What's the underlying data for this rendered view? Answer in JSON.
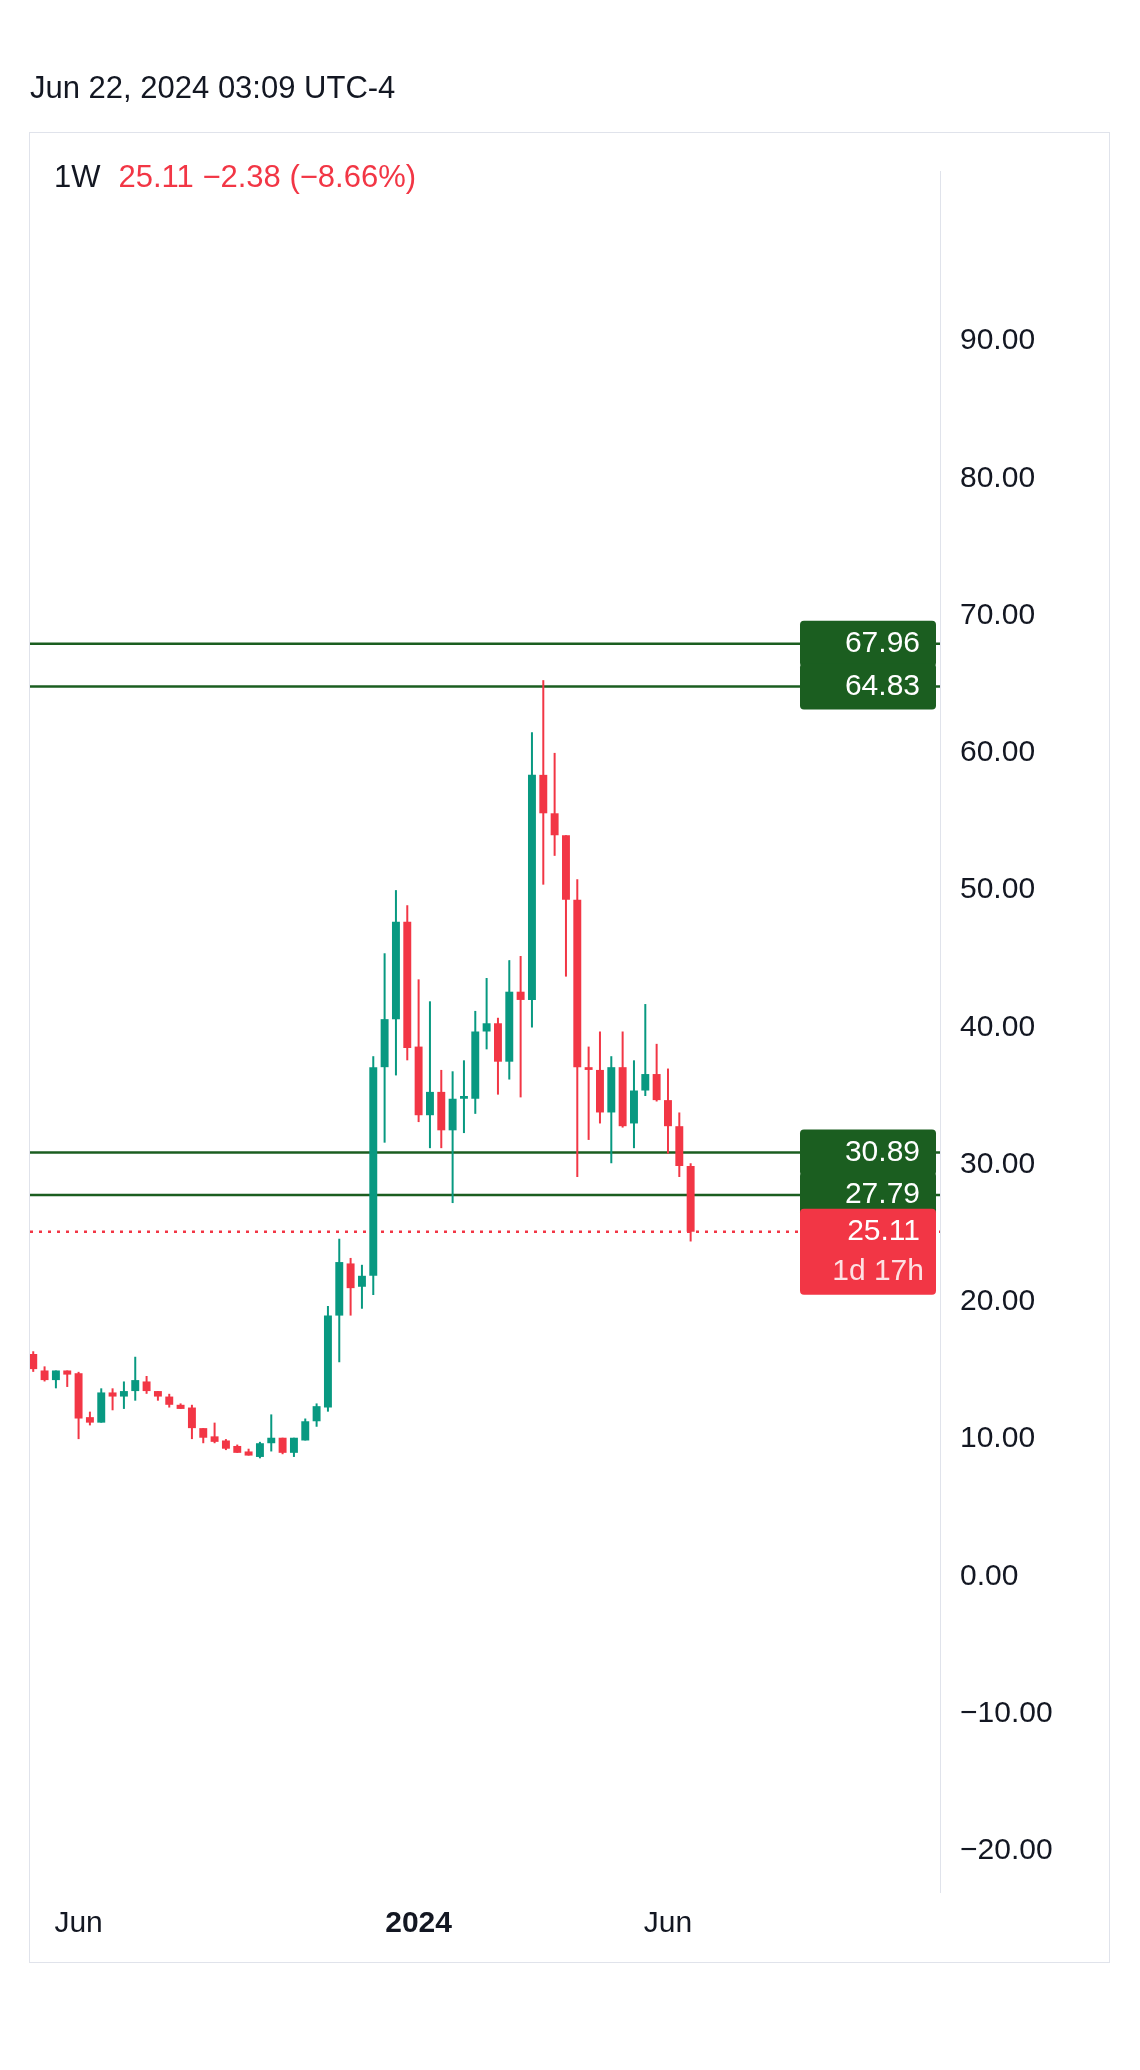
{
  "chart_data": {
    "type": "candlestick",
    "title": "1W",
    "subtitle": "Jun 22, 2024 03:09 UTC-4",
    "annotations": [
      "25.11  −2.38 (−8.66%)",
      {
        "text": "1d 17h",
        "x": "2024-11-18",
        "y": 25.11
      }
    ],
    "x": [
      "2023-05-08",
      "2023-05-15",
      "2023-05-22",
      "2023-05-29",
      "2023-06-05",
      "2023-06-12",
      "2023-06-19",
      "2023-06-26",
      "2023-07-03",
      "2023-07-10",
      "2023-07-17",
      "2023-07-24",
      "2023-07-31",
      "2023-08-07",
      "2023-08-14",
      "2023-08-21",
      "2023-08-28",
      "2023-09-04",
      "2023-09-11",
      "2023-09-18",
      "2023-09-25",
      "2023-10-02",
      "2023-10-09",
      "2023-10-16",
      "2023-10-23",
      "2023-10-30",
      "2023-11-06",
      "2023-11-13",
      "2023-11-20",
      "2023-11-27",
      "2023-12-04",
      "2023-12-11",
      "2023-12-18",
      "2023-12-25",
      "2024-01-01",
      "2024-01-08",
      "2024-01-15",
      "2024-01-22",
      "2024-01-29",
      "2024-02-05",
      "2024-02-12",
      "2024-02-19",
      "2024-02-26",
      "2024-03-04",
      "2024-03-11",
      "2024-03-18",
      "2024-03-25",
      "2024-04-01",
      "2024-04-08",
      "2024-04-15",
      "2024-04-22",
      "2024-04-29",
      "2024-05-06",
      "2024-05-13",
      "2024-05-20",
      "2024-05-27",
      "2024-06-03",
      "2024-06-10",
      "2024-06-17"
    ],
    "ohlc": [
      [
        16.2,
        16.4,
        14.9,
        15.1
      ],
      [
        15.0,
        15.3,
        14.2,
        14.3
      ],
      [
        14.3,
        15.0,
        13.7,
        15.0
      ],
      [
        15.0,
        15.0,
        13.8,
        14.7
      ],
      [
        14.8,
        14.9,
        10.0,
        11.5
      ],
      [
        11.6,
        12.0,
        11.0,
        11.2
      ],
      [
        11.2,
        13.7,
        11.2,
        13.4
      ],
      [
        13.4,
        13.7,
        12.1,
        13.1
      ],
      [
        13.1,
        14.2,
        12.2,
        13.5
      ],
      [
        13.5,
        16.0,
        12.8,
        14.3
      ],
      [
        14.2,
        14.6,
        13.3,
        13.5
      ],
      [
        13.5,
        13.5,
        12.8,
        13.1
      ],
      [
        13.1,
        13.3,
        12.3,
        12.5
      ],
      [
        12.5,
        12.6,
        12.2,
        12.2
      ],
      [
        12.3,
        12.5,
        10.0,
        10.8
      ],
      [
        10.8,
        10.8,
        9.7,
        10.1
      ],
      [
        10.2,
        11.2,
        9.7,
        9.8
      ],
      [
        9.9,
        10.0,
        9.2,
        9.3
      ],
      [
        9.5,
        9.6,
        9.0,
        9.0
      ],
      [
        9.1,
        9.3,
        8.8,
        8.8
      ],
      [
        8.7,
        9.8,
        8.6,
        9.7
      ],
      [
        9.7,
        11.8,
        9.1,
        10.1
      ],
      [
        10.1,
        10.1,
        8.9,
        9.0
      ],
      [
        9.0,
        10.1,
        8.7,
        10.1
      ],
      [
        9.9,
        11.5,
        9.9,
        11.3
      ],
      [
        11.3,
        12.6,
        10.9,
        12.4
      ],
      [
        12.3,
        19.7,
        12.0,
        19.0
      ],
      [
        19.0,
        24.6,
        15.6,
        22.9
      ],
      [
        22.8,
        23.2,
        19.0,
        21.0
      ],
      [
        21.1,
        22.7,
        19.5,
        21.9
      ],
      [
        21.9,
        37.9,
        20.5,
        37.1
      ],
      [
        37.1,
        45.4,
        31.6,
        40.6
      ],
      [
        40.6,
        50.0,
        36.5,
        47.7
      ],
      [
        47.7,
        48.9,
        37.6,
        38.5
      ],
      [
        38.6,
        43.5,
        33.1,
        33.6
      ],
      [
        33.6,
        41.9,
        31.2,
        35.3
      ],
      [
        35.3,
        36.9,
        31.2,
        32.5
      ],
      [
        32.5,
        36.8,
        27.2,
        34.8
      ],
      [
        34.8,
        37.6,
        32.3,
        35.0
      ],
      [
        34.8,
        41.2,
        33.7,
        39.7
      ],
      [
        39.7,
        43.6,
        38.4,
        40.3
      ],
      [
        40.3,
        40.7,
        35.1,
        37.5
      ],
      [
        37.5,
        44.9,
        36.2,
        42.6
      ],
      [
        42.6,
        45.2,
        34.9,
        42.0
      ],
      [
        42.0,
        61.5,
        40.0,
        58.4
      ],
      [
        58.4,
        65.3,
        50.4,
        55.6
      ],
      [
        55.6,
        60.0,
        52.5,
        54.0
      ],
      [
        54.0,
        54.0,
        43.7,
        49.3
      ],
      [
        49.3,
        50.8,
        29.1,
        37.1
      ],
      [
        37.1,
        38.6,
        31.8,
        36.9
      ],
      [
        36.9,
        39.7,
        33.0,
        33.8
      ],
      [
        33.8,
        37.9,
        30.1,
        37.1
      ],
      [
        37.1,
        39.7,
        32.7,
        32.8
      ],
      [
        33.0,
        37.6,
        31.2,
        35.4
      ],
      [
        35.4,
        41.7,
        35.0,
        36.6
      ],
      [
        36.6,
        38.8,
        34.6,
        34.7
      ],
      [
        34.7,
        37.0,
        30.8,
        32.8
      ],
      [
        32.8,
        33.8,
        29.1,
        29.9
      ],
      [
        29.9,
        30.1,
        24.4,
        25.11
      ]
    ],
    "colors": [
      "#f23645",
      "#f23645",
      "#089981",
      "#f23645",
      "#f23645",
      "#f23645",
      "#089981",
      "#f23645",
      "#089981",
      "#089981",
      "#f23645",
      "#f23645",
      "#f23645",
      "#f23645",
      "#f23645",
      "#f23645",
      "#f23645",
      "#f23645",
      "#f23645",
      "#f23645",
      "#089981",
      "#089981",
      "#f23645",
      "#089981",
      "#089981",
      "#089981",
      "#089981",
      "#089981",
      "#f23645",
      "#089981",
      "#089981",
      "#089981",
      "#089981",
      "#f23645",
      "#f23645",
      "#089981",
      "#f23645",
      "#089981",
      "#089981",
      "#089981",
      "#089981",
      "#f23645",
      "#089981",
      "#f23645",
      "#089981",
      "#f23645",
      "#f23645",
      "#f23645",
      "#f23645",
      "#f23645",
      "#f23645",
      "#089981",
      "#f23645",
      "#089981",
      "#089981",
      "#f23645",
      "#f23645",
      "#f23645",
      "#f23645"
    ],
    "xlim": [
      "2023-05-06",
      "2024-11-18"
    ],
    "xticks": [
      {
        "value": "2023-06-05",
        "label": "Jun"
      },
      {
        "value": "2024-01-01",
        "label": "2024"
      },
      {
        "value": "2024-06-03",
        "label": "Jun"
      }
    ],
    "ylim": [
      -23,
      102.4
    ],
    "yticks": [
      {
        "value": -20,
        "label": "−20.00"
      },
      {
        "value": -10,
        "label": "−10.00"
      },
      {
        "value": 0,
        "label": "0.00"
      },
      {
        "value": 10,
        "label": "10.00"
      },
      {
        "value": 20,
        "label": "20.00"
      },
      {
        "value": 30,
        "label": "30.00"
      },
      {
        "value": 40,
        "label": "40.00"
      },
      {
        "value": 50,
        "label": "50.00"
      },
      {
        "value": 60,
        "label": "60.00"
      },
      {
        "value": 70,
        "label": "70.00"
      },
      {
        "value": 80,
        "label": "80.00"
      },
      {
        "value": 90,
        "label": "90.00"
      }
    ],
    "ref_lines": [
      {
        "axis": "y",
        "value": 67.96,
        "label": "67.96",
        "color": "#1b5e20"
      },
      {
        "axis": "y",
        "value": 64.83,
        "label": "64.83",
        "color": "#1b5e20"
      },
      {
        "axis": "y",
        "value": 30.89,
        "label": "30.89",
        "color": "#1b5e20"
      },
      {
        "axis": "y",
        "value": 27.79,
        "label": "27.79",
        "color": "#1b5e20"
      },
      {
        "axis": "y",
        "value": 25.11,
        "label": "25.11",
        "color": "#f23645",
        "line_style": "dotted"
      }
    ],
    "grid": false,
    "legend": false
  }
}
